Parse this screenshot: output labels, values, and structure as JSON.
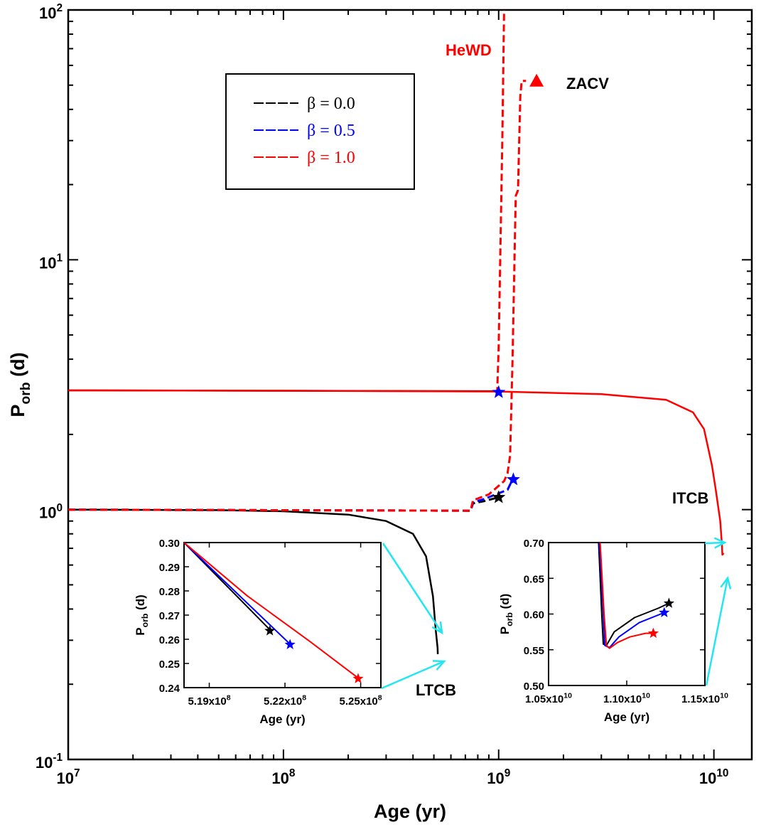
{
  "chart_data": [
    {
      "name": "main",
      "type": "line",
      "xlabel": "Age (yr)",
      "ylabel_main": "P",
      "ylabel_sub": "orb",
      "ylabel_unit": " (d)",
      "xscale": "log",
      "yscale": "log",
      "xlim": [
        10000000,
        15000000000
      ],
      "ylim": [
        0.1,
        100
      ],
      "x_ticks": [
        {
          "mant": "10",
          "exp": "7",
          "value": 10000000
        },
        {
          "mant": "10",
          "exp": "8",
          "value": 100000000
        },
        {
          "mant": "10",
          "exp": "9",
          "value": 1000000000
        },
        {
          "mant": "10",
          "exp": "10",
          "value": 10000000000
        }
      ],
      "y_ticks": [
        {
          "mant": "10",
          "exp": "-1",
          "value": 0.1
        },
        {
          "mant": "10",
          "exp": "0",
          "value": 1
        },
        {
          "mant": "10",
          "exp": "1",
          "value": 10
        },
        {
          "mant": "10",
          "exp": "2",
          "value": 100
        }
      ],
      "legend": {
        "placement": "upper-left",
        "entries": [
          {
            "label": "β = 0.0",
            "color": "#000000"
          },
          {
            "label": "β = 0.5",
            "color": "#0000ff"
          },
          {
            "label": "β = 1.0",
            "color": "#ff0000"
          }
        ]
      },
      "annotations": [
        {
          "text": "HeWD",
          "color": "#ff0000"
        },
        {
          "text": "ZACV",
          "color": "#000000"
        },
        {
          "text": "ITCB",
          "color": "#000000"
        },
        {
          "text": "LTCB",
          "color": "#000000"
        }
      ],
      "series": [
        {
          "name": "LTCB β = 0.0",
          "color": "#000000",
          "style": "solid",
          "points": [
            [
              10000000.0,
              1.0
            ],
            [
              50000000.0,
              0.995
            ],
            [
              100000000.0,
              0.985
            ],
            [
              200000000.0,
              0.955
            ],
            [
              300000000.0,
              0.9
            ],
            [
              400000000.0,
              0.8
            ],
            [
              460000000.0,
              0.65
            ],
            [
              495000000.0,
              0.45
            ],
            [
              510000000.0,
              0.33
            ],
            [
              520000000.0,
              0.28
            ],
            [
              521500000.0,
              0.264
            ]
          ]
        },
        {
          "name": "ITCB β = 0.0",
          "color": "#000000",
          "style": "solid",
          "points": [
            [
              10000000.0,
              3.0
            ],
            [
              100000000.0,
              2.99
            ],
            [
              1000000000.0,
              2.98
            ]
          ]
        },
        {
          "name": "ITCB β = 1.0",
          "color": "#ff0000",
          "style": "solid",
          "points": [
            [
              10000000.0,
              3.0
            ],
            [
              100000000.0,
              2.99
            ],
            [
              1000000000.0,
              2.97
            ],
            [
              3000000000.0,
              2.9
            ],
            [
              6000000000.0,
              2.75
            ],
            [
              8000000000.0,
              2.45
            ],
            [
              9000000000.0,
              2.1
            ],
            [
              9800000000.0,
              1.5
            ],
            [
              10200000000.0,
              1.2
            ],
            [
              10700000000.0,
              0.9
            ],
            [
              10900000000.0,
              0.72
            ],
            [
              10950000000.0,
              0.66
            ],
            [
              11100000000.0,
              0.67
            ]
          ]
        },
        {
          "name": "ZACV β = 0.0",
          "color": "#000000",
          "style": "dashed",
          "points": [
            [
              10000000.0,
              1.0
            ],
            [
              740000000.0,
              0.99
            ],
            [
              760000000.0,
              1.06
            ],
            [
              850000000.0,
              1.08
            ],
            [
              1000000000.0,
              1.12
            ]
          ]
        },
        {
          "name": "ZACV β = 0.5",
          "color": "#0000ff",
          "style": "dashed",
          "points": [
            [
              10000000.0,
              1.0
            ],
            [
              740000000.0,
              0.99
            ],
            [
              760000000.0,
              1.07
            ],
            [
              850000000.0,
              1.1
            ],
            [
              1100000000.0,
              1.2
            ],
            [
              1160000000.0,
              1.32
            ]
          ]
        },
        {
          "name": "ZACV β = 1.0",
          "color": "#ff0000",
          "style": "dashed",
          "points": [
            [
              10000000.0,
              1.0
            ],
            [
              740000000.0,
              0.99
            ],
            [
              760000000.0,
              1.09
            ],
            [
              900000000.0,
              1.15
            ],
            [
              1060000000.0,
              1.3
            ],
            [
              1100000000.0,
              1.4
            ],
            [
              1130000000.0,
              1.65
            ],
            [
              1160000000.0,
              4.0
            ],
            [
              1200000000.0,
              18
            ],
            [
              1230000000.0,
              19
            ],
            [
              1260000000.0,
              45
            ],
            [
              1280000000.0,
              52
            ],
            [
              1340000000.0,
              52
            ]
          ]
        },
        {
          "name": "HeWD β = 1.0",
          "color": "#ff0000",
          "style": "dashed",
          "points": [
            [
              980000000.0,
              2.9
            ],
            [
              985000000.0,
              3.0
            ],
            [
              1000000000.0,
              4.5
            ],
            [
              1040000000.0,
              30
            ],
            [
              1060000000.0,
              100
            ]
          ]
        }
      ],
      "markers": [
        {
          "shape": "star",
          "color": "#0000ff",
          "x": 1000000000.0,
          "y": 2.95
        },
        {
          "shape": "star",
          "color": "#000000",
          "x": 1000000000.0,
          "y": 1.12
        },
        {
          "shape": "star",
          "color": "#0000ff",
          "x": 1170000000.0,
          "y": 1.32
        },
        {
          "shape": "triangle",
          "color": "#ff0000",
          "x": 1500000000.0,
          "y": 52
        }
      ]
    },
    {
      "name": "inset-left",
      "type": "line",
      "xlabel": "Age (yr)",
      "ylabel_main": "P",
      "ylabel_sub": "orb",
      "ylabel_unit": " (d)",
      "xlim": [
        518000000,
        525800000
      ],
      "ylim": [
        0.24,
        0.3
      ],
      "x_ticks": [
        {
          "mant": "5.19x10",
          "exp": "8",
          "value": 519000000
        },
        {
          "mant": "5.22x10",
          "exp": "8",
          "value": 522000000
        },
        {
          "mant": "5.25x10",
          "exp": "8",
          "value": 525000000
        }
      ],
      "y_ticks": [
        "0.24",
        "0.25",
        "0.26",
        "0.27",
        "0.28",
        "0.29",
        "0.30"
      ],
      "series": [
        {
          "name": "β = 0.0",
          "color": "#000000",
          "points": [
            [
              518000000,
              0.3
            ],
            [
              521400000,
              0.264
            ]
          ]
        },
        {
          "name": "β = 0.5",
          "color": "#0000ff",
          "points": [
            [
              518000000,
              0.3
            ],
            [
              520000000,
              0.28
            ],
            [
              522200000,
              0.258
            ]
          ]
        },
        {
          "name": "β = 1.0",
          "color": "#ff0000",
          "points": [
            [
              518000000,
              0.3
            ],
            [
              520500000,
              0.278
            ],
            [
              523000000,
              0.259
            ],
            [
              524900000,
              0.244
            ]
          ]
        }
      ],
      "markers": [
        {
          "shape": "star",
          "color": "#000000",
          "x": 521400000,
          "y": 0.2635
        },
        {
          "shape": "star",
          "color": "#0000ff",
          "x": 522200000,
          "y": 0.2578
        },
        {
          "shape": "star",
          "color": "#ff0000",
          "x": 524900000,
          "y": 0.2437
        }
      ]
    },
    {
      "name": "inset-right",
      "type": "line",
      "xlabel": "Age (yr)",
      "ylabel_main": "P",
      "ylabel_sub": "orb",
      "ylabel_unit": " (d)",
      "xlim": [
        10500000000,
        11500000000
      ],
      "ylim": [
        0.5,
        0.7
      ],
      "x_ticks": [
        {
          "mant": "1.05x10",
          "exp": "10",
          "value": 10500000000
        },
        {
          "mant": "1.10x10",
          "exp": "10",
          "value": 11000000000
        },
        {
          "mant": "1.15x10",
          "exp": "10",
          "value": 11500000000
        }
      ],
      "y_ticks": [
        "0.50",
        "0.55",
        "0.60",
        "0.65",
        "0.70"
      ],
      "series": [
        {
          "name": "β = 0.0",
          "color": "#000000",
          "points": [
            [
              10820000000,
              0.7
            ],
            [
              10840000000,
              0.6
            ],
            [
              10850000000,
              0.558
            ],
            [
              10870000000,
              0.556
            ],
            [
              10920000000,
              0.575
            ],
            [
              11050000000,
              0.595
            ],
            [
              11200000000,
              0.608
            ],
            [
              11270000000,
              0.615
            ]
          ]
        },
        {
          "name": "β = 0.5",
          "color": "#0000ff",
          "points": [
            [
              10825000000,
              0.7
            ],
            [
              10850000000,
              0.6
            ],
            [
              10860000000,
              0.556
            ],
            [
              10890000000,
              0.553
            ],
            [
              10950000000,
              0.568
            ],
            [
              11080000000,
              0.588
            ],
            [
              11240000000,
              0.602
            ]
          ]
        },
        {
          "name": "β = 1.0",
          "color": "#ff0000",
          "points": [
            [
              10830000000,
              0.7
            ],
            [
              10855000000,
              0.6
            ],
            [
              10870000000,
              0.556
            ],
            [
              10890000000,
              0.552
            ],
            [
              10940000000,
              0.56
            ],
            [
              11020000000,
              0.568
            ],
            [
              11120000000,
              0.573
            ],
            [
              11170000000,
              0.573
            ]
          ]
        }
      ],
      "markers": [
        {
          "shape": "star",
          "color": "#000000",
          "x": 11270000000,
          "y": 0.615
        },
        {
          "shape": "star",
          "color": "#0000ff",
          "x": 11240000000,
          "y": 0.602
        },
        {
          "shape": "star",
          "color": "#ff0000",
          "x": 11170000000,
          "y": 0.573
        }
      ]
    }
  ],
  "colors": {
    "arrow": "#22e6f0",
    "axis": "#000000"
  }
}
